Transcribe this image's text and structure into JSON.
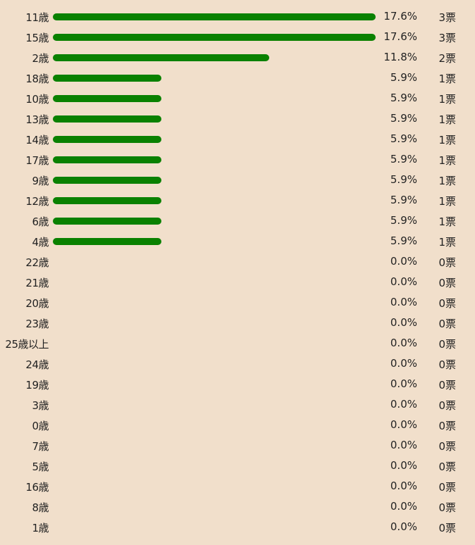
{
  "chart_data": {
    "type": "bar",
    "orientation": "horizontal",
    "xlim": [
      0,
      17.6
    ],
    "bar_color": "#0a8100",
    "background_color": "#f1dfcb",
    "rows": [
      {
        "label": "11歳",
        "value": 17.6,
        "percent": "17.6%",
        "votes": "3票"
      },
      {
        "label": "15歳",
        "value": 17.6,
        "percent": "17.6%",
        "votes": "3票"
      },
      {
        "label": "2歳",
        "value": 11.8,
        "percent": "11.8%",
        "votes": "2票"
      },
      {
        "label": "18歳",
        "value": 5.9,
        "percent": "5.9%",
        "votes": "1票"
      },
      {
        "label": "10歳",
        "value": 5.9,
        "percent": "5.9%",
        "votes": "1票"
      },
      {
        "label": "13歳",
        "value": 5.9,
        "percent": "5.9%",
        "votes": "1票"
      },
      {
        "label": "14歳",
        "value": 5.9,
        "percent": "5.9%",
        "votes": "1票"
      },
      {
        "label": "17歳",
        "value": 5.9,
        "percent": "5.9%",
        "votes": "1票"
      },
      {
        "label": "9歳",
        "value": 5.9,
        "percent": "5.9%",
        "votes": "1票"
      },
      {
        "label": "12歳",
        "value": 5.9,
        "percent": "5.9%",
        "votes": "1票"
      },
      {
        "label": "6歳",
        "value": 5.9,
        "percent": "5.9%",
        "votes": "1票"
      },
      {
        "label": "4歳",
        "value": 5.9,
        "percent": "5.9%",
        "votes": "1票"
      },
      {
        "label": "22歳",
        "value": 0,
        "percent": "0.0%",
        "votes": "0票"
      },
      {
        "label": "21歳",
        "value": 0,
        "percent": "0.0%",
        "votes": "0票"
      },
      {
        "label": "20歳",
        "value": 0,
        "percent": "0.0%",
        "votes": "0票"
      },
      {
        "label": "23歳",
        "value": 0,
        "percent": "0.0%",
        "votes": "0票"
      },
      {
        "label": "25歳以上",
        "value": 0,
        "percent": "0.0%",
        "votes": "0票"
      },
      {
        "label": "24歳",
        "value": 0,
        "percent": "0.0%",
        "votes": "0票"
      },
      {
        "label": "19歳",
        "value": 0,
        "percent": "0.0%",
        "votes": "0票"
      },
      {
        "label": "3歳",
        "value": 0,
        "percent": "0.0%",
        "votes": "0票"
      },
      {
        "label": "0歳",
        "value": 0,
        "percent": "0.0%",
        "votes": "0票"
      },
      {
        "label": "7歳",
        "value": 0,
        "percent": "0.0%",
        "votes": "0票"
      },
      {
        "label": "5歳",
        "value": 0,
        "percent": "0.0%",
        "votes": "0票"
      },
      {
        "label": "16歳",
        "value": 0,
        "percent": "0.0%",
        "votes": "0票"
      },
      {
        "label": "8歳",
        "value": 0,
        "percent": "0.0%",
        "votes": "0票"
      },
      {
        "label": "1歳",
        "value": 0,
        "percent": "0.0%",
        "votes": "0票"
      }
    ]
  }
}
